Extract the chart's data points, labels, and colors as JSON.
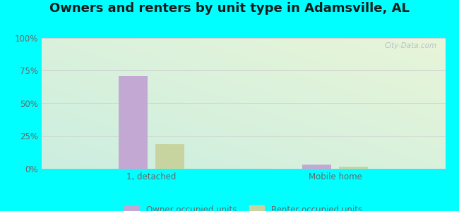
{
  "title": "Owners and renters by unit type in Adamsville, AL",
  "title_fontsize": 13,
  "categories": [
    "1, detached",
    "Mobile home"
  ],
  "owner_values": [
    71,
    3
  ],
  "renter_values": [
    19,
    1.5
  ],
  "owner_color": "#c4a8d4",
  "renter_color": "#c8d4a0",
  "ylim": [
    0,
    100
  ],
  "yticks": [
    0,
    25,
    50,
    75,
    100
  ],
  "ytick_labels": [
    "0%",
    "25%",
    "50%",
    "75%",
    "100%"
  ],
  "background_outer": "#00ffff",
  "legend_owner": "Owner occupied units",
  "legend_renter": "Renter occupied units",
  "bar_width": 0.08,
  "group_centers": [
    0.25,
    0.75
  ],
  "watermark": "City-Data.com",
  "grid_color": "#cccccc",
  "tick_color": "#666666",
  "title_color": "#1a1a1a"
}
